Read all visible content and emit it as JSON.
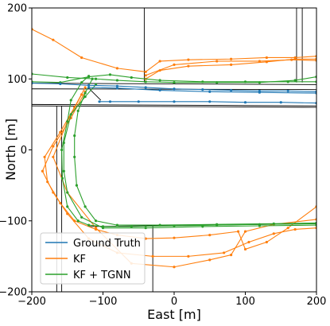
{
  "chart_data": {
    "type": "line",
    "xlabel": "East [m]",
    "ylabel": "North [m]",
    "xlim": [
      -200,
      200
    ],
    "ylim": [
      -200,
      200
    ],
    "xticks": [
      -200,
      -100,
      0,
      100,
      200
    ],
    "yticks": [
      -200,
      -100,
      0,
      100,
      200
    ],
    "legend_position": "lower-left",
    "road_color": "#000000",
    "roads": [
      [
        [
          -200,
          94
        ],
        [
          200,
          92
        ]
      ],
      [
        [
          -200,
          86
        ],
        [
          200,
          85
        ]
      ],
      [
        [
          -200,
          62
        ],
        [
          200,
          60
        ]
      ],
      [
        [
          -200,
          64
        ],
        [
          200,
          62
        ]
      ],
      [
        [
          -42,
          200
        ],
        [
          -42,
          95
        ]
      ],
      [
        [
          172,
          200
        ],
        [
          172,
          95
        ]
      ],
      [
        [
          180,
          200
        ],
        [
          180,
          95
        ]
      ],
      [
        [
          -165,
          62
        ],
        [
          -165,
          -200
        ]
      ],
      [
        [
          -158,
          62
        ],
        [
          -158,
          -200
        ]
      ],
      [
        [
          -120,
          -108
        ],
        [
          200,
          -104
        ]
      ],
      [
        [
          -30,
          -108
        ],
        [
          -30,
          -200
        ]
      ],
      [
        [
          -118,
          85
        ],
        [
          -103,
          70
        ]
      ]
    ],
    "series": [
      {
        "name": "Ground Truth",
        "color": "#1f77b4",
        "paths": [
          [
            [
              -200,
              94
            ],
            [
              -160,
              93
            ],
            [
              -120,
              91
            ],
            [
              -80,
              90
            ],
            [
              -40,
              88
            ],
            [
              0,
              86
            ],
            [
              40,
              85
            ],
            [
              80,
              84
            ],
            [
              120,
              83
            ],
            [
              160,
              83
            ],
            [
              200,
              82
            ]
          ],
          [
            [
              -105,
              68
            ],
            [
              -90,
              68
            ],
            [
              -50,
              68
            ],
            [
              0,
              68
            ],
            [
              50,
              68
            ],
            [
              100,
              67
            ],
            [
              150,
              67
            ],
            [
              200,
              66
            ]
          ],
          [
            [
              -120,
              88
            ],
            [
              -80,
              87
            ],
            [
              -20,
              84
            ],
            [
              50,
              82
            ],
            [
              120,
              81
            ],
            [
              200,
              80
            ]
          ]
        ]
      },
      {
        "name": "KF",
        "color": "#ff7f0e",
        "paths": [
          [
            [
              -200,
              170
            ],
            [
              -170,
              155
            ],
            [
              -130,
              130
            ],
            [
              -80,
              115
            ],
            [
              -40,
              110
            ],
            [
              -20,
              125
            ],
            [
              20,
              127
            ],
            [
              80,
              128
            ],
            [
              130,
              130
            ],
            [
              170,
              130
            ],
            [
              200,
              132
            ]
          ],
          [
            [
              -40,
              100
            ],
            [
              -20,
              112
            ],
            [
              20,
              118
            ],
            [
              80,
              120
            ],
            [
              130,
              124
            ],
            [
              170,
              128
            ],
            [
              200,
              128
            ]
          ],
          [
            [
              -40,
              105
            ],
            [
              0,
              120
            ],
            [
              60,
              125
            ],
            [
              120,
              125
            ],
            [
              165,
              127
            ],
            [
              200,
              126
            ]
          ],
          [
            [
              -125,
              88
            ],
            [
              -140,
              60
            ],
            [
              -160,
              25
            ],
            [
              -182,
              -10
            ],
            [
              -178,
              -45
            ],
            [
              -160,
              -75
            ],
            [
              -140,
              -100
            ],
            [
              -110,
              -112
            ],
            [
              -80,
              -120
            ],
            [
              -40,
              -125
            ],
            [
              0,
              -124
            ],
            [
              50,
              -120
            ],
            [
              90,
              -115
            ],
            [
              100,
              -140
            ],
            [
              130,
              -130
            ],
            [
              160,
              -110
            ],
            [
              200,
              -80
            ]
          ],
          [
            [
              -125,
              82
            ],
            [
              -145,
              45
            ],
            [
              -170,
              5
            ],
            [
              -185,
              -30
            ],
            [
              -170,
              -60
            ],
            [
              -150,
              -90
            ],
            [
              -120,
              -125
            ],
            [
              -80,
              -145
            ],
            [
              -30,
              -150
            ],
            [
              20,
              -150
            ],
            [
              70,
              -145
            ],
            [
              105,
              -130
            ],
            [
              140,
              -118
            ],
            [
              170,
              -112
            ],
            [
              200,
              -110
            ]
          ],
          [
            [
              -130,
              78
            ],
            [
              -150,
              40
            ],
            [
              -170,
              -10
            ],
            [
              -150,
              -60
            ],
            [
              -110,
              -110
            ],
            [
              -60,
              -160
            ],
            [
              0,
              -165
            ],
            [
              50,
              -155
            ],
            [
              80,
              -148
            ],
            [
              100,
              -115
            ],
            [
              140,
              -105
            ],
            [
              200,
              -98
            ]
          ]
        ]
      },
      {
        "name": "KF + TGNN",
        "color": "#2ca02c",
        "paths": [
          [
            [
              -200,
              107
            ],
            [
              -150,
              102
            ],
            [
              -110,
              100
            ],
            [
              -80,
              98
            ],
            [
              -40,
              96
            ],
            [
              0,
              95
            ],
            [
              60,
              95
            ],
            [
              120,
              95
            ],
            [
              170,
              98
            ],
            [
              200,
              103
            ]
          ],
          [
            [
              -200,
              96
            ],
            [
              -160,
              95
            ],
            [
              -120,
              103
            ],
            [
              -90,
              106
            ],
            [
              -60,
              102
            ],
            [
              -20,
              98
            ],
            [
              40,
              96
            ],
            [
              100,
              96
            ],
            [
              160,
              96
            ],
            [
              200,
              96
            ]
          ],
          [
            [
              -120,
              104
            ],
            [
              -130,
              95
            ],
            [
              -145,
              70
            ],
            [
              -150,
              40
            ],
            [
              -158,
              0
            ],
            [
              -157,
              -40
            ],
            [
              -150,
              -80
            ],
            [
              -135,
              -100
            ],
            [
              -120,
              -106
            ],
            [
              -100,
              -108
            ],
            [
              -60,
              -108
            ],
            [
              0,
              -107
            ],
            [
              60,
              -106
            ],
            [
              120,
              -105
            ],
            [
              200,
              -104
            ]
          ],
          [
            [
              -115,
              100
            ],
            [
              -125,
              80
            ],
            [
              -135,
              55
            ],
            [
              -140,
              20
            ],
            [
              -140,
              -10
            ],
            [
              -137,
              -50
            ],
            [
              -125,
              -80
            ],
            [
              -110,
              -100
            ],
            [
              -80,
              -106
            ],
            [
              -20,
              -106
            ],
            [
              60,
              -105
            ],
            [
              140,
              -104
            ],
            [
              200,
              -103
            ]
          ],
          [
            [
              -110,
              92
            ],
            [
              -125,
              75
            ],
            [
              -145,
              50
            ],
            [
              -155,
              10
            ],
            [
              -155,
              -30
            ],
            [
              -150,
              -60
            ],
            [
              -130,
              -95
            ],
            [
              -100,
              -110
            ],
            [
              -40,
              -110
            ],
            [
              40,
              -108
            ],
            [
              120,
              -107
            ],
            [
              200,
              -106
            ]
          ]
        ]
      }
    ]
  }
}
